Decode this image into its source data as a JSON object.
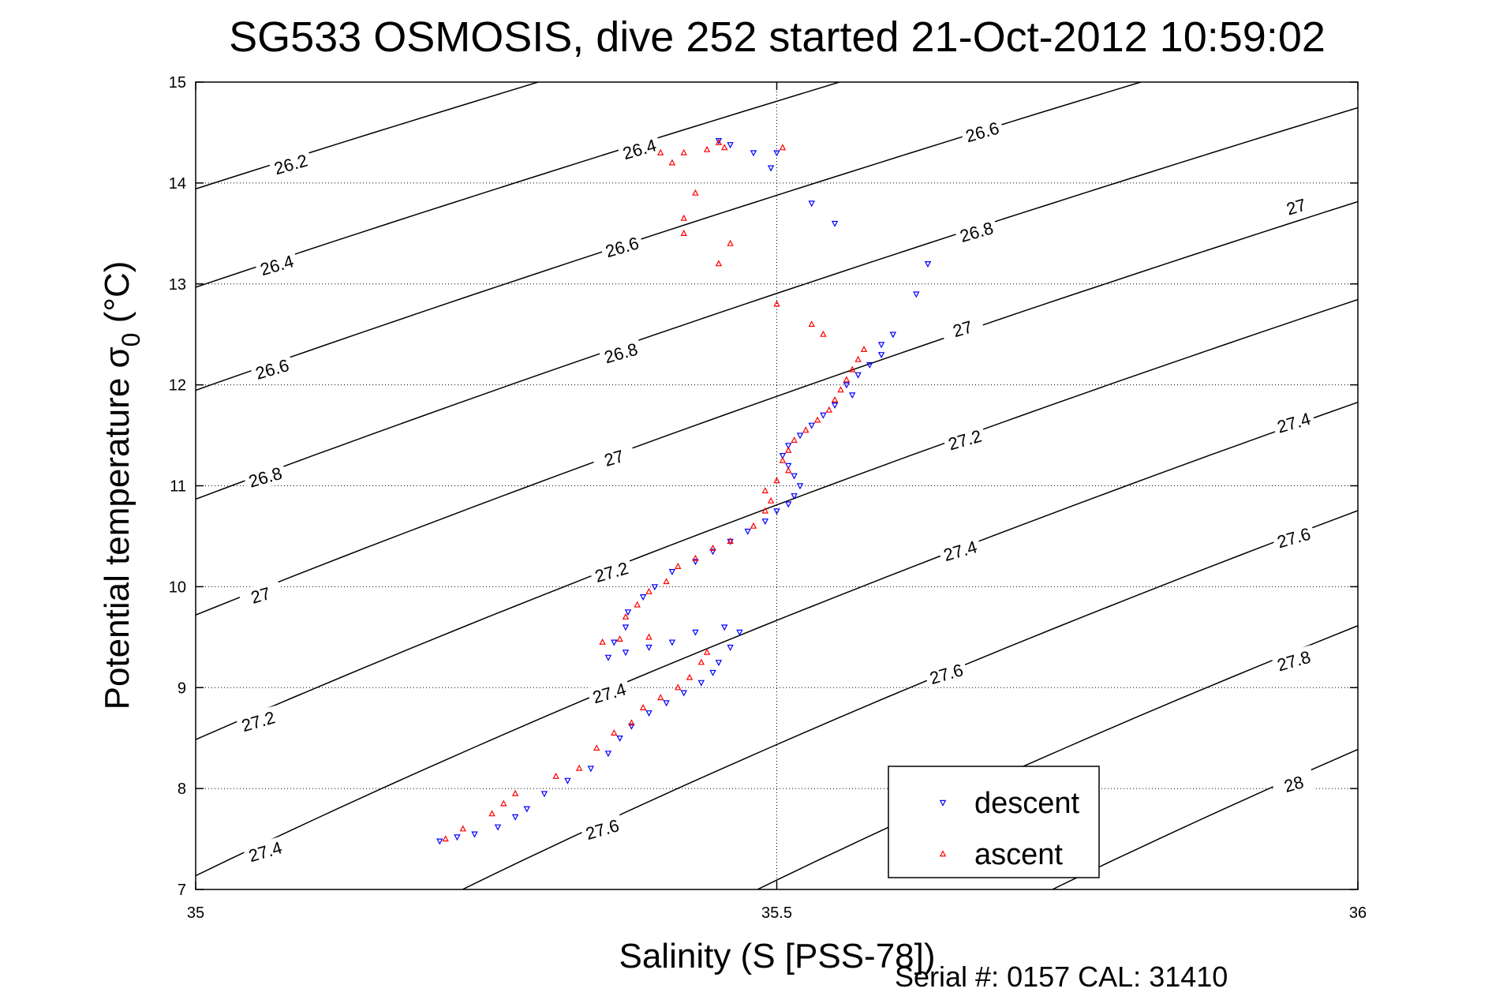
{
  "chart_data": {
    "type": "scatter",
    "title": "SG533 OSMOSIS, dive 252 started 21-Oct-2012 10:59:02",
    "xlabel": "Salinity (S [PSS-78])",
    "ylabel_main": "Potential temperature σ",
    "ylabel_sub": "0",
    "ylabel_unit": "(°C)",
    "xlim": [
      35,
      36
    ],
    "ylim": [
      7,
      15
    ],
    "x_ticks": [
      35,
      35.5,
      36
    ],
    "x_tick_labels": [
      "35",
      "35.5",
      "36"
    ],
    "y_ticks": [
      7,
      8,
      9,
      10,
      11,
      12,
      13,
      14,
      15
    ],
    "y_tick_labels": [
      "7",
      "8",
      "9",
      "10",
      "11",
      "12",
      "13",
      "14",
      "15"
    ],
    "grid": true,
    "legend_position": "bottom-right",
    "footer": "Serial #: 0157  CAL: 31410",
    "contour_levels": [
      26.2,
      26.4,
      26.6,
      26.8,
      27,
      27.2,
      27.4,
      27.6,
      27.8,
      28
    ],
    "contour_labels": [
      {
        "text": "26.2",
        "s": 35.082,
        "t": 14.18
      },
      {
        "text": "26.4",
        "s": 35.07,
        "t": 13.18
      },
      {
        "text": "26.6",
        "s": 35.066,
        "t": 12.15
      },
      {
        "text": "26.8",
        "s": 35.06,
        "t": 11.08
      },
      {
        "text": "27",
        "s": 35.056,
        "t": 9.91
      },
      {
        "text": "27.2",
        "s": 35.054,
        "t": 8.66
      },
      {
        "text": "27.4",
        "s": 35.06,
        "t": 7.37
      },
      {
        "text": "26.4",
        "s": 35.382,
        "t": 14.33
      },
      {
        "text": "26.6",
        "s": 35.367,
        "t": 13.36
      },
      {
        "text": "26.8",
        "s": 35.366,
        "t": 12.31
      },
      {
        "text": "27",
        "s": 35.36,
        "t": 11.27
      },
      {
        "text": "27.2",
        "s": 35.358,
        "t": 10.14
      },
      {
        "text": "27.4",
        "s": 35.356,
        "t": 8.94
      },
      {
        "text": "27.6",
        "s": 35.35,
        "t": 7.59
      },
      {
        "text": "26.6",
        "s": 35.677,
        "t": 14.5
      },
      {
        "text": "26.8",
        "s": 35.672,
        "t": 13.51
      },
      {
        "text": "27",
        "s": 35.66,
        "t": 12.55
      },
      {
        "text": "27.2",
        "s": 35.662,
        "t": 11.45
      },
      {
        "text": "27.4",
        "s": 35.658,
        "t": 10.35
      },
      {
        "text": "27.6",
        "s": 35.646,
        "t": 9.13
      },
      {
        "text": "27",
        "s": 35.947,
        "t": 13.76
      },
      {
        "text": "27.4",
        "s": 35.945,
        "t": 11.62
      },
      {
        "text": "27.6",
        "s": 35.945,
        "t": 10.48
      },
      {
        "text": "27.8",
        "s": 35.945,
        "t": 9.26
      },
      {
        "text": "28",
        "s": 35.945,
        "t": 8.04
      }
    ],
    "series": [
      {
        "name": "descent",
        "color": "#0000ff",
        "marker": "triangle-down",
        "points": [
          [
            35.21,
            7.48
          ],
          [
            35.225,
            7.52
          ],
          [
            35.24,
            7.55
          ],
          [
            35.26,
            7.62
          ],
          [
            35.275,
            7.72
          ],
          [
            35.285,
            7.8
          ],
          [
            35.3,
            7.95
          ],
          [
            35.32,
            8.08
          ],
          [
            35.34,
            8.2
          ],
          [
            35.355,
            8.35
          ],
          [
            35.365,
            8.5
          ],
          [
            35.375,
            8.62
          ],
          [
            35.39,
            8.75
          ],
          [
            35.405,
            8.85
          ],
          [
            35.42,
            8.95
          ],
          [
            35.435,
            9.05
          ],
          [
            35.445,
            9.15
          ],
          [
            35.45,
            9.25
          ],
          [
            35.46,
            9.4
          ],
          [
            35.468,
            9.55
          ],
          [
            35.455,
            9.6
          ],
          [
            35.43,
            9.55
          ],
          [
            35.41,
            9.45
          ],
          [
            35.39,
            9.4
          ],
          [
            35.37,
            9.35
          ],
          [
            35.355,
            9.3
          ],
          [
            35.36,
            9.45
          ],
          [
            35.37,
            9.6
          ],
          [
            35.372,
            9.75
          ],
          [
            35.385,
            9.9
          ],
          [
            35.395,
            10.0
          ],
          [
            35.41,
            10.15
          ],
          [
            35.43,
            10.25
          ],
          [
            35.445,
            10.35
          ],
          [
            35.46,
            10.45
          ],
          [
            35.475,
            10.55
          ],
          [
            35.49,
            10.65
          ],
          [
            35.5,
            10.75
          ],
          [
            35.51,
            10.82
          ],
          [
            35.515,
            10.9
          ],
          [
            35.52,
            11.0
          ],
          [
            35.515,
            11.1
          ],
          [
            35.51,
            11.2
          ],
          [
            35.505,
            11.3
          ],
          [
            35.51,
            11.4
          ],
          [
            35.52,
            11.5
          ],
          [
            35.53,
            11.6
          ],
          [
            35.54,
            11.7
          ],
          [
            35.55,
            11.8
          ],
          [
            35.565,
            11.9
          ],
          [
            35.56,
            12.0
          ],
          [
            35.57,
            12.1
          ],
          [
            35.58,
            12.2
          ],
          [
            35.59,
            12.3
          ],
          [
            35.59,
            12.4
          ],
          [
            35.6,
            12.5
          ],
          [
            35.62,
            12.9
          ],
          [
            35.63,
            13.2
          ],
          [
            35.55,
            13.6
          ],
          [
            35.53,
            13.8
          ],
          [
            35.48,
            14.3
          ],
          [
            35.46,
            14.38
          ],
          [
            35.45,
            14.42
          ],
          [
            35.5,
            14.3
          ],
          [
            35.495,
            14.15
          ]
        ]
      },
      {
        "name": "ascent",
        "color": "#ff0000",
        "marker": "triangle-up",
        "points": [
          [
            35.215,
            7.5
          ],
          [
            35.23,
            7.6
          ],
          [
            35.255,
            7.75
          ],
          [
            35.265,
            7.85
          ],
          [
            35.275,
            7.95
          ],
          [
            35.31,
            8.12
          ],
          [
            35.33,
            8.2
          ],
          [
            35.345,
            8.4
          ],
          [
            35.36,
            8.55
          ],
          [
            35.375,
            8.65
          ],
          [
            35.385,
            8.8
          ],
          [
            35.4,
            8.9
          ],
          [
            35.415,
            9.0
          ],
          [
            35.425,
            9.1
          ],
          [
            35.435,
            9.25
          ],
          [
            35.44,
            9.35
          ],
          [
            35.39,
            9.5
          ],
          [
            35.365,
            9.48
          ],
          [
            35.35,
            9.45
          ],
          [
            35.37,
            9.7
          ],
          [
            35.38,
            9.82
          ],
          [
            35.39,
            9.95
          ],
          [
            35.405,
            10.05
          ],
          [
            35.415,
            10.2
          ],
          [
            35.43,
            10.28
          ],
          [
            35.445,
            10.38
          ],
          [
            35.46,
            10.45
          ],
          [
            35.48,
            10.6
          ],
          [
            35.49,
            10.75
          ],
          [
            35.495,
            10.85
          ],
          [
            35.49,
            10.95
          ],
          [
            35.5,
            11.05
          ],
          [
            35.51,
            11.15
          ],
          [
            35.505,
            11.25
          ],
          [
            35.51,
            11.35
          ],
          [
            35.515,
            11.45
          ],
          [
            35.525,
            11.55
          ],
          [
            35.535,
            11.65
          ],
          [
            35.545,
            11.75
          ],
          [
            35.55,
            11.85
          ],
          [
            35.555,
            11.95
          ],
          [
            35.56,
            12.05
          ],
          [
            35.565,
            12.15
          ],
          [
            35.57,
            12.25
          ],
          [
            35.575,
            12.35
          ],
          [
            35.54,
            12.5
          ],
          [
            35.53,
            12.6
          ],
          [
            35.5,
            12.8
          ],
          [
            35.45,
            13.2
          ],
          [
            35.46,
            13.4
          ],
          [
            35.42,
            13.5
          ],
          [
            35.42,
            13.65
          ],
          [
            35.43,
            13.9
          ],
          [
            35.41,
            14.2
          ],
          [
            35.4,
            14.3
          ],
          [
            35.42,
            14.3
          ],
          [
            35.44,
            14.33
          ],
          [
            35.45,
            14.4
          ],
          [
            35.455,
            14.35
          ],
          [
            35.505,
            14.35
          ]
        ]
      }
    ]
  }
}
